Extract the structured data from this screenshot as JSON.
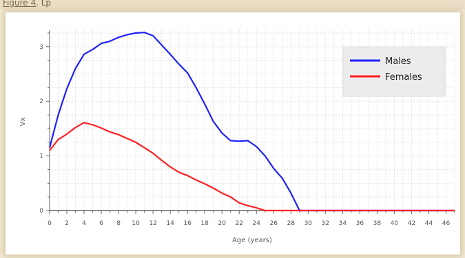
{
  "caption": {
    "link_text": "Figure 4",
    "rest_text": ". Lp"
  },
  "chart_data": {
    "type": "line",
    "xlabel": "Age (years)",
    "ylabel": "Vx",
    "xlim": [
      0,
      47
    ],
    "ylim": [
      -0.05,
      3.3
    ],
    "xticks": [
      0,
      2,
      4,
      6,
      8,
      10,
      12,
      14,
      16,
      18,
      20,
      22,
      24,
      26,
      28,
      30,
      32,
      34,
      36,
      38,
      40,
      42,
      44,
      46
    ],
    "yticks": [
      0,
      1,
      2,
      3
    ],
    "grid": true,
    "legend_position": "top-right",
    "series": [
      {
        "name": "Males",
        "color": "#2020ff",
        "x": [
          0,
          1,
          2,
          3,
          4,
          5,
          6,
          7,
          8,
          9,
          10,
          11,
          12,
          13,
          14,
          15,
          16,
          17,
          18,
          19,
          20,
          21,
          22,
          23,
          24,
          25,
          26,
          27,
          28,
          29,
          30,
          32,
          34,
          36,
          38,
          40,
          42,
          44,
          46,
          47
        ],
        "values": [
          1.15,
          1.75,
          2.23,
          2.6,
          2.86,
          2.95,
          3.06,
          3.1,
          3.17,
          3.22,
          3.25,
          3.26,
          3.2,
          3.03,
          2.86,
          2.68,
          2.52,
          2.25,
          1.95,
          1.63,
          1.42,
          1.28,
          1.27,
          1.28,
          1.17,
          1.0,
          0.77,
          0.59,
          0.32,
          0.0,
          0.0,
          0.0,
          0.0,
          0.0,
          0.0,
          0.0,
          0.0,
          0.0,
          0.0,
          0.0
        ]
      },
      {
        "name": "Females",
        "color": "#ff2020",
        "x": [
          0,
          1,
          2,
          3,
          4,
          5,
          6,
          7,
          8,
          9,
          10,
          11,
          12,
          13,
          14,
          15,
          16,
          17,
          18,
          19,
          20,
          21,
          22,
          23,
          24,
          25,
          26,
          28,
          30,
          32,
          34,
          36,
          38,
          40,
          42,
          44,
          46,
          47
        ],
        "values": [
          1.1,
          1.3,
          1.4,
          1.52,
          1.61,
          1.57,
          1.51,
          1.44,
          1.39,
          1.32,
          1.25,
          1.15,
          1.05,
          0.92,
          0.8,
          0.7,
          0.64,
          0.56,
          0.49,
          0.41,
          0.32,
          0.25,
          0.14,
          0.09,
          0.05,
          0.0,
          0.0,
          0.0,
          0.0,
          0.0,
          0.0,
          0.0,
          0.0,
          0.0,
          0.0,
          0.0,
          0.0,
          0.0
        ]
      }
    ]
  }
}
